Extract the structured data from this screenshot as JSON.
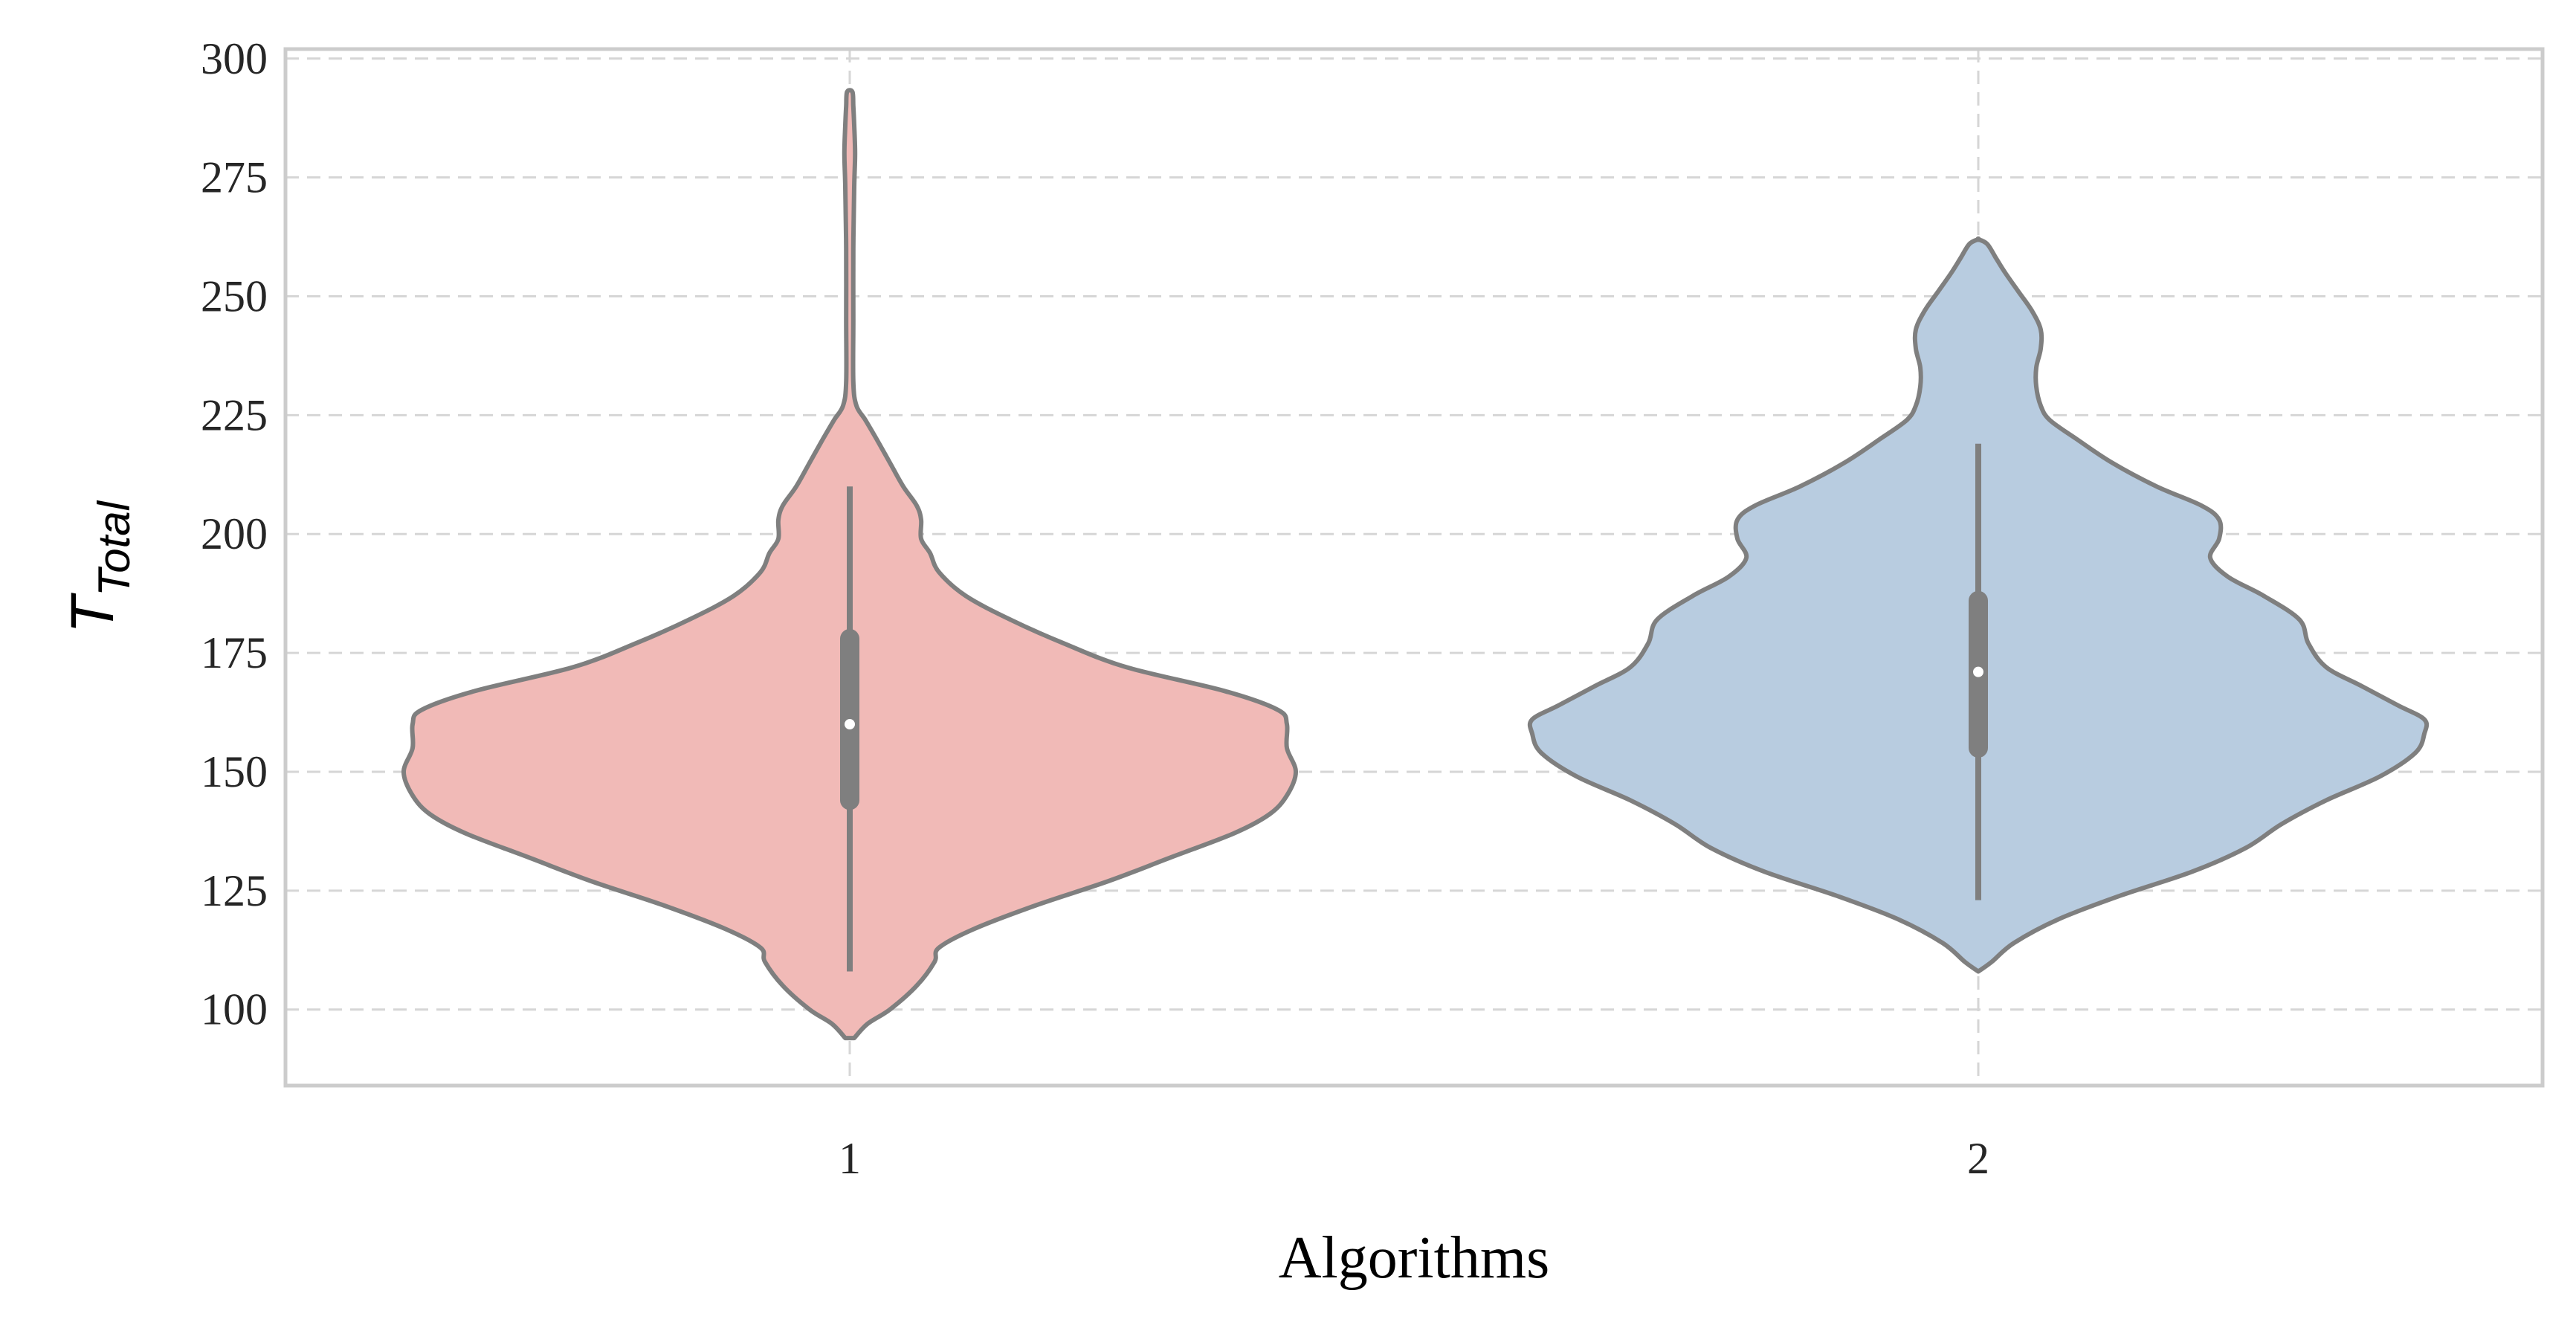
{
  "chart_data": {
    "type": "violin",
    "xlabel": "Algorithms",
    "ylabel": {
      "main": "T",
      "subscript": "Total"
    },
    "categories": [
      "1",
      "2"
    ],
    "ylim": [
      84,
      302
    ],
    "yticks": [
      100,
      125,
      150,
      175,
      200,
      225,
      250,
      275,
      300
    ],
    "ytick_labels": [
      "100",
      "125",
      "150",
      "175",
      "200",
      "225",
      "250",
      "275",
      "300"
    ],
    "grid": true,
    "grid_style": "dashed",
    "violins": [
      {
        "category": "1",
        "color": "#f1bab7",
        "min": 108,
        "q1": 144,
        "median": 160,
        "q3": 178,
        "max": 210,
        "kde_extent": [
          94,
          293
        ],
        "density_profile": [
          [
            94,
            0.01
          ],
          [
            97,
            0.04
          ],
          [
            100,
            0.09
          ],
          [
            105,
            0.15
          ],
          [
            110,
            0.19
          ],
          [
            113,
            0.2
          ],
          [
            117,
            0.28
          ],
          [
            122,
            0.42
          ],
          [
            127,
            0.58
          ],
          [
            132,
            0.72
          ],
          [
            137,
            0.86
          ],
          [
            141,
            0.94
          ],
          [
            145,
            0.98
          ],
          [
            150,
            1.0
          ],
          [
            155,
            0.98
          ],
          [
            160,
            0.98
          ],
          [
            163,
            0.96
          ],
          [
            167,
            0.84
          ],
          [
            172,
            0.62
          ],
          [
            177,
            0.48
          ],
          [
            182,
            0.36
          ],
          [
            187,
            0.26
          ],
          [
            192,
            0.2
          ],
          [
            196,
            0.18
          ],
          [
            199,
            0.16
          ],
          [
            203,
            0.16
          ],
          [
            206,
            0.15
          ],
          [
            210,
            0.12
          ],
          [
            215,
            0.09
          ],
          [
            220,
            0.06
          ],
          [
            224,
            0.035
          ],
          [
            227,
            0.015
          ],
          [
            232,
            0.008
          ],
          [
            245,
            0.008
          ],
          [
            260,
            0.008
          ],
          [
            273,
            0.01
          ],
          [
            280,
            0.012
          ],
          [
            286,
            0.01
          ],
          [
            290,
            0.008
          ],
          [
            293,
            0.006
          ]
        ]
      },
      {
        "category": "2",
        "color": "#b8cce0",
        "min": 123,
        "q1": 155,
        "median": 171,
        "q3": 186,
        "max": 219,
        "kde_extent": [
          108,
          262
        ],
        "density_profile": [
          [
            108,
            0.0
          ],
          [
            110,
            0.03
          ],
          [
            114,
            0.08
          ],
          [
            119,
            0.18
          ],
          [
            124,
            0.32
          ],
          [
            129,
            0.48
          ],
          [
            134,
            0.6
          ],
          [
            139,
            0.68
          ],
          [
            144,
            0.78
          ],
          [
            149,
            0.9
          ],
          [
            154,
            0.98
          ],
          [
            158,
            1.0
          ],
          [
            161,
            1.0
          ],
          [
            164,
            0.94
          ],
          [
            168,
            0.86
          ],
          [
            172,
            0.78
          ],
          [
            177,
            0.74
          ],
          [
            182,
            0.72
          ],
          [
            187,
            0.64
          ],
          [
            191,
            0.56
          ],
          [
            195,
            0.52
          ],
          [
            199,
            0.54
          ],
          [
            203,
            0.54
          ],
          [
            206,
            0.5
          ],
          [
            210,
            0.4
          ],
          [
            215,
            0.3
          ],
          [
            220,
            0.22
          ],
          [
            224,
            0.16
          ],
          [
            227,
            0.14
          ],
          [
            231,
            0.13
          ],
          [
            235,
            0.13
          ],
          [
            239,
            0.14
          ],
          [
            243,
            0.14
          ],
          [
            247,
            0.12
          ],
          [
            251,
            0.09
          ],
          [
            255,
            0.06
          ],
          [
            258,
            0.04
          ],
          [
            261,
            0.02
          ],
          [
            262,
            0.0
          ]
        ]
      }
    ],
    "colors": {
      "outline": "#7f7f7f",
      "grid": "#d6d6d6",
      "spine": "#cccccc",
      "median_dot": "#ffffff"
    }
  }
}
